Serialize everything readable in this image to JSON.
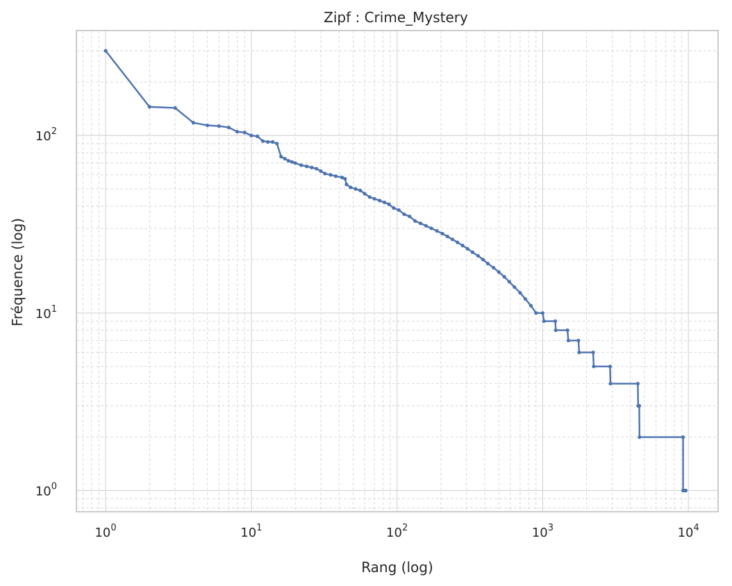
{
  "chart_data": {
    "type": "line",
    "title": "Zipf : Crime_Mystery",
    "xlabel": "Rang (log)",
    "ylabel": "Fréquence (log)",
    "xscale": "log",
    "yscale": "log",
    "xlim": [
      0.63,
      16000
    ],
    "ylim": [
      0.76,
      390
    ],
    "grid": true,
    "x_ticks": [
      {
        "value": 1,
        "base": "10",
        "exp": "0"
      },
      {
        "value": 10,
        "base": "10",
        "exp": "1"
      },
      {
        "value": 100,
        "base": "10",
        "exp": "2"
      },
      {
        "value": 1000,
        "base": "10",
        "exp": "3"
      },
      {
        "value": 10000,
        "base": "10",
        "exp": "4"
      }
    ],
    "y_ticks": [
      {
        "value": 1,
        "base": "10",
        "exp": "0"
      },
      {
        "value": 10,
        "base": "10",
        "exp": "1"
      },
      {
        "value": 100,
        "base": "10",
        "exp": "2"
      }
    ],
    "line_color": "#4c72b0",
    "series": [
      {
        "points": [
          [
            1,
            300
          ],
          [
            2,
            145
          ],
          [
            3,
            143
          ],
          [
            4,
            118
          ],
          [
            5,
            114
          ],
          [
            6,
            113
          ],
          [
            7,
            111
          ],
          [
            8,
            105
          ],
          [
            9,
            104
          ],
          [
            10,
            100
          ],
          [
            11,
            99
          ],
          [
            12,
            93
          ],
          [
            13,
            92
          ],
          [
            14,
            92
          ],
          [
            15,
            90
          ],
          [
            16,
            76
          ],
          [
            17,
            74
          ],
          [
            18,
            72
          ],
          [
            19,
            71
          ],
          [
            20,
            70
          ],
          [
            22,
            68
          ],
          [
            24,
            67
          ],
          [
            26,
            66
          ],
          [
            28,
            65
          ],
          [
            30,
            63
          ],
          [
            32,
            61
          ],
          [
            35,
            60
          ],
          [
            38,
            59
          ],
          [
            42,
            58
          ],
          [
            44,
            57
          ],
          [
            45,
            53
          ],
          [
            48,
            51
          ],
          [
            52,
            50
          ],
          [
            56,
            49
          ],
          [
            60,
            47
          ],
          [
            65,
            45
          ],
          [
            70,
            44
          ],
          [
            76,
            43
          ],
          [
            82,
            42
          ],
          [
            88,
            41
          ],
          [
            95,
            39
          ],
          [
            103,
            38
          ],
          [
            112,
            36
          ],
          [
            122,
            35
          ],
          [
            133,
            33
          ],
          [
            145,
            32
          ],
          [
            158,
            31
          ],
          [
            172,
            30
          ],
          [
            188,
            29
          ],
          [
            205,
            28
          ],
          [
            222,
            27
          ],
          [
            240,
            26
          ],
          [
            260,
            25
          ],
          [
            282,
            24
          ],
          [
            305,
            23
          ],
          [
            330,
            22
          ],
          [
            360,
            21
          ],
          [
            390,
            20
          ],
          [
            420,
            19
          ],
          [
            460,
            18
          ],
          [
            500,
            17
          ],
          [
            545,
            16
          ],
          [
            590,
            15
          ],
          [
            640,
            14
          ],
          [
            700,
            13
          ],
          [
            760,
            12
          ],
          [
            830,
            11
          ],
          [
            900,
            10
          ],
          [
            1000,
            10
          ],
          [
            1020,
            9
          ],
          [
            1220,
            9
          ],
          [
            1230,
            8
          ],
          [
            1480,
            8
          ],
          [
            1500,
            7
          ],
          [
            1760,
            7
          ],
          [
            1780,
            6
          ],
          [
            2220,
            6
          ],
          [
            2240,
            5
          ],
          [
            2900,
            5
          ],
          [
            2920,
            4
          ],
          [
            4500,
            4
          ],
          [
            4520,
            3
          ],
          [
            4600,
            3
          ],
          [
            4620,
            2
          ],
          [
            9200,
            2
          ],
          [
            9200,
            1
          ],
          [
            9400,
            1
          ],
          [
            9400,
            1
          ],
          [
            9600,
            1
          ]
        ]
      }
    ]
  }
}
